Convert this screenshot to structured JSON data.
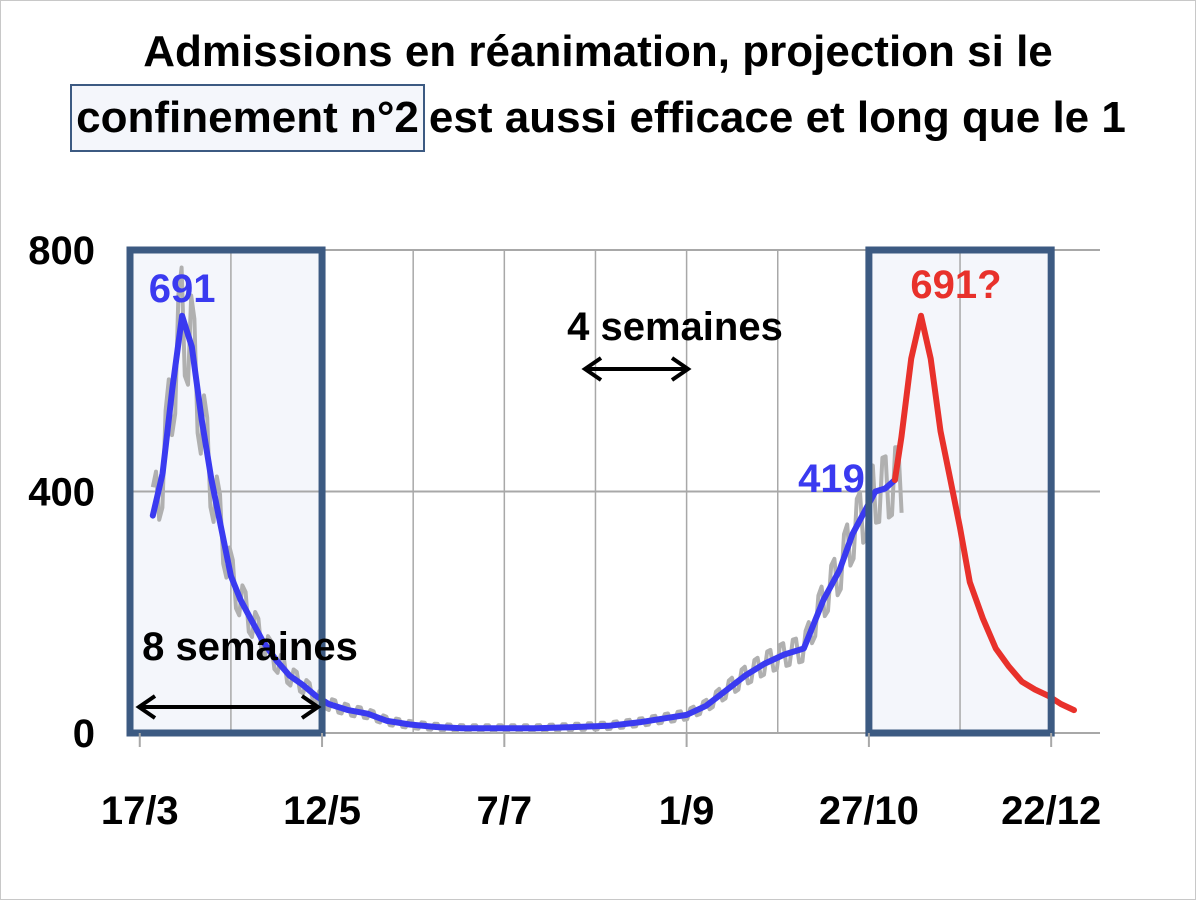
{
  "title": {
    "line1": "Admissions en réanimation, projection si le",
    "line2_boxed": "confinement n°2",
    "line2_rest": "est aussi efficace et long que le 1"
  },
  "annotations": {
    "peak1": "691",
    "peak2": "691?",
    "current": "419",
    "four_weeks": "4 semaines",
    "eight_weeks": "8 semaines"
  },
  "colors": {
    "observed": "#3a3af0",
    "projection": "#e8312b",
    "raw": "#b0b0b0",
    "box_border": "#3c5a82",
    "box_fill": "#f4f6fb",
    "grid": "#a8a8a8"
  },
  "chart_data": {
    "type": "line",
    "title": "Admissions en réanimation, projection si le confinement n°2 est aussi efficace et long que le 1",
    "xlabel": "",
    "ylabel": "",
    "ylim": [
      0,
      800
    ],
    "yticks": [
      "0",
      "400",
      "800"
    ],
    "xticks": [
      "17/3",
      "12/5",
      "7/7",
      "1/9",
      "27/10",
      "22/12"
    ],
    "grid": true,
    "x_unit": "date 2020",
    "series": [
      {
        "key": "observed",
        "x": [
          "2020-03-21",
          "2020-03-24",
          "2020-03-27",
          "2020-03-30",
          "2020-04-02",
          "2020-04-05",
          "2020-04-08",
          "2020-04-11",
          "2020-04-14",
          "2020-04-17",
          "2020-04-20",
          "2020-04-24",
          "2020-04-28",
          "2020-05-02",
          "2020-05-06",
          "2020-05-10",
          "2020-05-14",
          "2020-05-20",
          "2020-05-26",
          "2020-06-01",
          "2020-06-08",
          "2020-06-16",
          "2020-06-24",
          "2020-07-05",
          "2020-07-17",
          "2020-07-29",
          "2020-08-08",
          "2020-08-18",
          "2020-08-26",
          "2020-09-01",
          "2020-09-07",
          "2020-09-13",
          "2020-09-19",
          "2020-09-25",
          "2020-10-01",
          "2020-10-07",
          "2020-10-13",
          "2020-10-18",
          "2020-10-22",
          "2020-10-26",
          "2020-10-29",
          "2020-11-01",
          "2020-11-04"
        ],
        "values": [
          360,
          430,
          570,
          691,
          640,
          520,
          420,
          340,
          260,
          220,
          190,
          150,
          120,
          95,
          80,
          62,
          48,
          38,
          32,
          20,
          14,
          10,
          8,
          8,
          8,
          10,
          12,
          18,
          25,
          30,
          45,
          70,
          95,
          115,
          130,
          140,
          220,
          270,
          330,
          370,
          400,
          405,
          419
        ]
      },
      {
        "key": "projection",
        "x": [
          "2020-11-04",
          "2020-11-06",
          "2020-11-09",
          "2020-11-12",
          "2020-11-15",
          "2020-11-18",
          "2020-11-21",
          "2020-11-24",
          "2020-11-27",
          "2020-12-01",
          "2020-12-05",
          "2020-12-09",
          "2020-12-13",
          "2020-12-17",
          "2020-12-21",
          "2020-12-25",
          "2020-12-29"
        ],
        "values": [
          419,
          490,
          620,
          691,
          620,
          500,
          420,
          340,
          250,
          190,
          140,
          110,
          85,
          72,
          62,
          48,
          38
        ]
      }
    ],
    "reference_boxes": [
      {
        "x0": "2020-03-14",
        "x1": "2020-05-12",
        "ymax": 800
      },
      {
        "x0": "2020-10-27",
        "x1": "2020-12-22",
        "ymax": 800
      }
    ]
  }
}
